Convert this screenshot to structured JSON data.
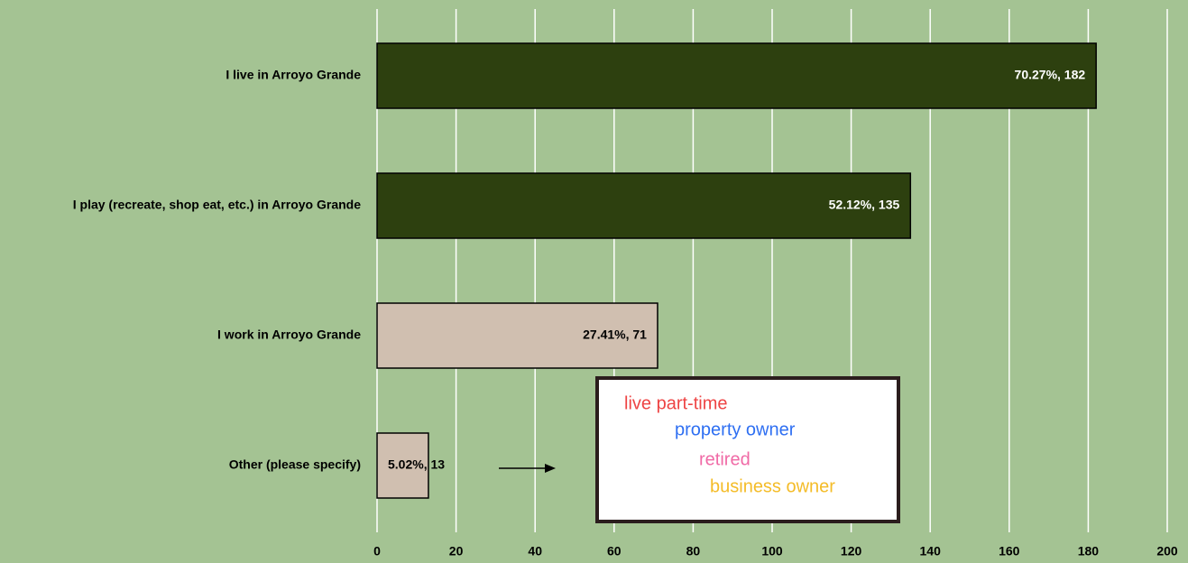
{
  "chart_data": {
    "type": "barh",
    "categories": [
      "I live in Arroyo Grande",
      "I play (recreate, shop eat, etc.) in Arroyo Grande",
      "I work in Arroyo Grande",
      "Other (please specify)"
    ],
    "values": [
      182,
      135,
      71,
      13
    ],
    "value_labels": [
      "70.27%, 182",
      "52.12%, 135",
      "27.41%, 71",
      "5.02%, 13"
    ],
    "colors": [
      "#2d400f",
      "#2d400f",
      "#d0bfb0",
      "#d0bfb0"
    ],
    "xlim": [
      0,
      200
    ],
    "xticks": [
      0,
      20,
      40,
      60,
      80,
      100,
      120,
      140,
      160,
      180,
      200
    ],
    "grid": true,
    "annotations": [
      {
        "text": "live part-time",
        "color": "#ee4444"
      },
      {
        "text": "property owner",
        "color": "#2e6ff2"
      },
      {
        "text": "retired",
        "color": "#f06aa6"
      },
      {
        "text": "business owner",
        "color": "#f4bc28"
      }
    ]
  }
}
